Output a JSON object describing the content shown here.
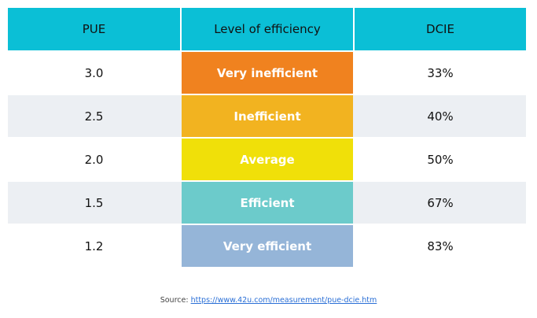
{
  "table": {
    "header": [
      "PUE",
      "Level of efficiency",
      "DCIE"
    ],
    "rows": [
      [
        "3.0",
        "Very inefficient",
        "33%"
      ],
      [
        "2.5",
        "Inefficient",
        "40%"
      ],
      [
        "2.0",
        "Average",
        "50%"
      ],
      [
        "1.5",
        "Efficient",
        "67%"
      ],
      [
        "1.2",
        "Very efficient",
        "83%"
      ]
    ]
  },
  "source": {
    "label": "Source:",
    "url": "https://www.42u.com/measurement/pue-dcie.htm"
  }
}
